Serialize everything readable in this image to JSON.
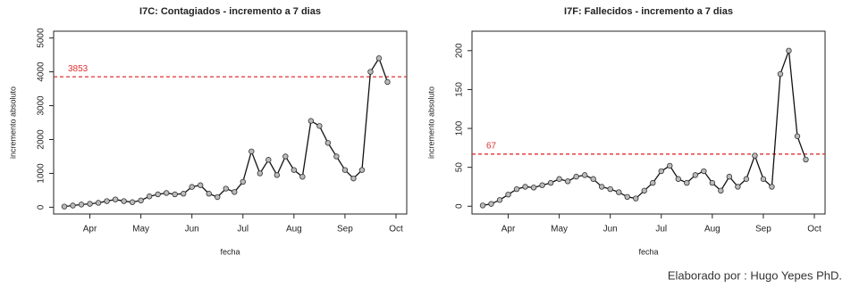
{
  "chart_data": [
    {
      "type": "line",
      "title": "I7C: Contagiados - incremento a 7 dias",
      "x_label": "fecha",
      "y_label": "incremento absoluto",
      "categories": [
        null,
        null,
        null,
        "Apr",
        null,
        null,
        null,
        null,
        null,
        "May",
        null,
        null,
        null,
        null,
        null,
        "Jun",
        null,
        null,
        null,
        null,
        null,
        "Jul",
        null,
        null,
        null,
        null,
        null,
        "Aug",
        null,
        null,
        null,
        null,
        null,
        "Sep",
        null,
        null,
        null,
        null,
        null,
        "Oct"
      ],
      "values": [
        20,
        50,
        80,
        100,
        130,
        180,
        230,
        180,
        150,
        200,
        320,
        380,
        420,
        380,
        400,
        600,
        650,
        400,
        300,
        550,
        450,
        750,
        1650,
        1000,
        1400,
        950,
        1500,
        1100,
        900,
        2550,
        2400,
        1900,
        1500,
        1100,
        850,
        1100,
        4000,
        4400,
        3700,
        null
      ],
      "color": "#111111",
      "ylim": [
        -200,
        5200
      ],
      "yticks": [
        0,
        1000,
        2000,
        3000,
        4000,
        5000
      ],
      "hline": 3853,
      "hline_color": "#e03030"
    },
    {
      "type": "line",
      "title": "I7F: Fallecidos - incremento a 7 dias",
      "x_label": "fecha",
      "y_label": "incremento absoluto",
      "categories": [
        null,
        null,
        null,
        "Apr",
        null,
        null,
        null,
        null,
        null,
        "May",
        null,
        null,
        null,
        null,
        null,
        "Jun",
        null,
        null,
        null,
        null,
        null,
        "Jul",
        null,
        null,
        null,
        null,
        null,
        "Aug",
        null,
        null,
        null,
        null,
        null,
        "Sep",
        null,
        null,
        null,
        null,
        null,
        "Oct"
      ],
      "values": [
        1,
        3,
        8,
        15,
        22,
        25,
        24,
        27,
        30,
        35,
        32,
        38,
        40,
        35,
        25,
        22,
        18,
        12,
        10,
        20,
        30,
        45,
        52,
        35,
        30,
        40,
        45,
        30,
        20,
        38,
        25,
        35,
        65,
        35,
        25,
        170,
        200,
        90,
        60,
        null
      ],
      "color": "#111111",
      "ylim": [
        -10,
        225
      ],
      "yticks": [
        0,
        50,
        100,
        150,
        200
      ],
      "hline": 67,
      "hline_color": "#e03030"
    }
  ],
  "footer": "Elaborado por : Hugo Yepes PhD."
}
